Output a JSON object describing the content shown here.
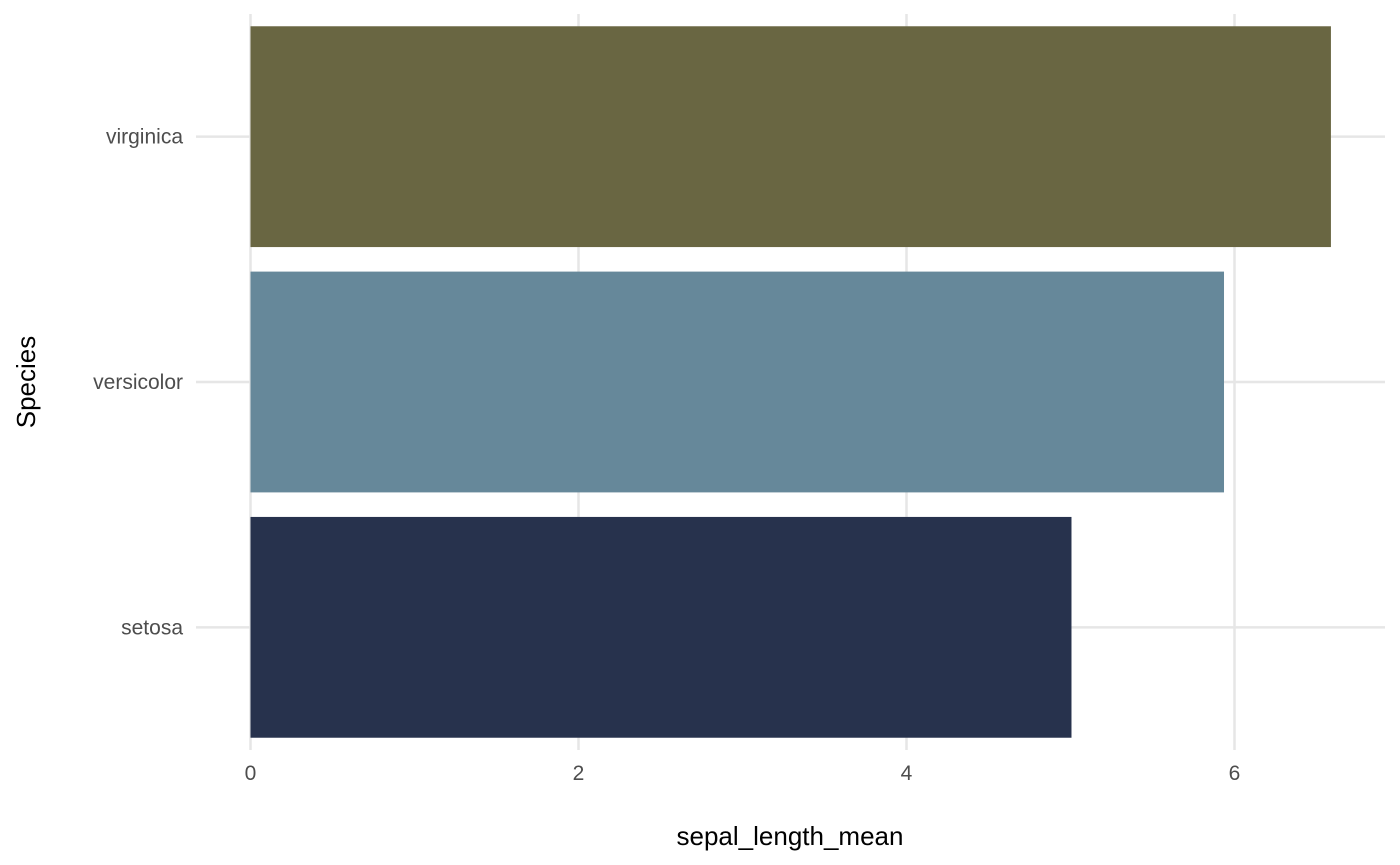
{
  "chart_data": {
    "type": "bar",
    "orientation": "horizontal",
    "categories": [
      "setosa",
      "versicolor",
      "virginica"
    ],
    "values": [
      5.006,
      5.936,
      6.588
    ],
    "colors": [
      "#27324d",
      "#66889a",
      "#696642"
    ],
    "xlabel": "sepal_length_mean",
    "ylabel": "Species",
    "xlim": [
      0,
      6.92
    ],
    "xticks": [
      0,
      2,
      4,
      6
    ],
    "grid": true,
    "legend": "none"
  }
}
